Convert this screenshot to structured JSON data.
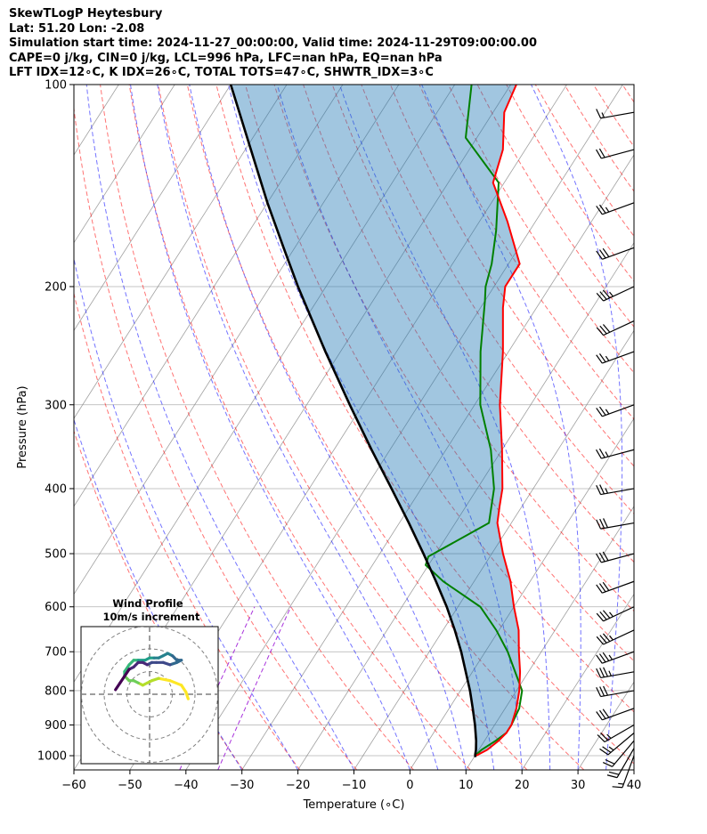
{
  "header": {
    "line1": "SkewTLogP Heytesbury",
    "line2": "Lat: 51.20   Lon: -2.08",
    "line3": "Simulation start time: 2024-11-27_00:00:00, Valid time: 2024-11-29T09:00:00.00",
    "line4": "CAPE=0 j/kg, CIN=0 j/kg, LCL=996 hPa, LFC=nan hPa, EQ=nan hPa",
    "line5": "LFT IDX=12∘C, K IDX=26∘C, TOTAL TOTS=47∘C, SHWTR_IDX=3∘C"
  },
  "chart_data": {
    "type": "line",
    "subtype": "skew-t log-p diagram",
    "xlabel": "Temperature (∘C)",
    "ylabel": "Pressure (hPa)",
    "xlim": [
      -60,
      40
    ],
    "ylim": [
      1050,
      100
    ],
    "y_scale": "log",
    "x_ticks": [
      -60,
      -50,
      -40,
      -30,
      -20,
      -10,
      0,
      10,
      20,
      30,
      40
    ],
    "x_tick_labels": [
      "−60",
      "−50",
      "−40",
      "−30",
      "−20",
      "−10",
      "0",
      "10",
      "20",
      "30",
      "40"
    ],
    "y_ticks": [
      1000,
      900,
      800,
      700,
      600,
      500,
      400,
      300,
      200,
      100
    ],
    "y_tick_labels": [
      "1000",
      "900",
      "800",
      "700",
      "600",
      "500",
      "400",
      "300",
      "200",
      "100"
    ],
    "grid": true,
    "colors": {
      "temperature": "#ff0000",
      "dewpoint": "#008000",
      "parcel": "#000000",
      "shading": "#1f77b4",
      "dry_adiabat": "#ff0000",
      "moist_adiabat": "#0000ff",
      "isotherm": "#808080",
      "mixing_ratio": "#9400d3"
    },
    "series": [
      {
        "role": "temperature",
        "pressure": [
          1000,
          980,
          950,
          925,
          900,
          850,
          800,
          750,
          700,
          650,
          600,
          550,
          500,
          450,
          425,
          400,
          350,
          300,
          250,
          215,
          200,
          185,
          160,
          140,
          125,
          110,
          100
        ],
        "values": [
          10.2,
          11.5,
          12.5,
          13.0,
          13.0,
          12.0,
          10.5,
          8.5,
          6.0,
          3.5,
          0.0,
          -3.5,
          -8.0,
          -12.5,
          -14.0,
          -15.5,
          -20.0,
          -25.5,
          -31.0,
          -36.0,
          -38.0,
          -38.0,
          -45.0,
          -52.0,
          -54.0,
          -58.0,
          -59.0
        ]
      },
      {
        "role": "dewpoint",
        "pressure": [
          1000,
          980,
          950,
          925,
          900,
          850,
          800,
          700,
          650,
          600,
          550,
          520,
          505,
          450,
          400,
          350,
          300,
          250,
          210,
          200,
          185,
          165,
          140,
          120,
          100
        ],
        "values": [
          10.0,
          10.5,
          12.0,
          13.0,
          13.0,
          12.5,
          11.0,
          4.0,
          -0.5,
          -6.0,
          -15.5,
          -20.5,
          -21.0,
          -14.0,
          -17.0,
          -22.0,
          -29.0,
          -35.0,
          -40.0,
          -41.5,
          -43.0,
          -46.0,
          -51.0,
          -62.0,
          -67.0
        ]
      },
      {
        "role": "parcel",
        "pressure": [
          1005,
          996,
          980,
          950,
          900,
          850,
          800,
          750,
          700,
          650,
          600,
          550,
          500,
          450,
          400,
          350,
          300,
          250,
          200,
          175,
          150,
          125,
          100
        ],
        "values": [
          10.2,
          9.9,
          9.5,
          8.5,
          6.5,
          4.2,
          1.7,
          -1.2,
          -4.3,
          -7.9,
          -12.0,
          -16.8,
          -22.2,
          -28.3,
          -35.3,
          -43.3,
          -52.3,
          -62.7,
          -75.0,
          -82.0,
          -90.0,
          -99.0,
          -110.0
        ]
      }
    ],
    "background_lines": {
      "dry_adiabats_theta_K": [
        240,
        250,
        260,
        270,
        280,
        290,
        300,
        310,
        320,
        330,
        340,
        350,
        360,
        370,
        380,
        390,
        400,
        410,
        420,
        430,
        440,
        450,
        460,
        470
      ],
      "moist_adiabats_start_temp_C": [
        -30,
        -20,
        -10,
        0,
        5,
        10,
        15,
        20,
        25,
        30,
        35
      ],
      "mixing_ratio_lines_gkg": [
        0.1,
        0.2
      ],
      "isotherms_step_C": 10
    },
    "wind_barbs": {
      "pressure": [
        1000,
        975,
        950,
        925,
        900,
        850,
        800,
        750,
        700,
        650,
        600,
        550,
        500,
        450,
        400,
        350,
        300,
        250,
        225,
        200,
        175,
        150,
        125,
        110
      ],
      "speed_kt": [
        15,
        20,
        20,
        25,
        25,
        30,
        30,
        35,
        35,
        35,
        35,
        30,
        30,
        30,
        25,
        25,
        25,
        25,
        30,
        35,
        30,
        25,
        20,
        15
      ],
      "direction_deg": [
        200,
        210,
        220,
        230,
        240,
        250,
        260,
        260,
        250,
        245,
        245,
        250,
        255,
        260,
        260,
        255,
        250,
        250,
        245,
        245,
        250,
        250,
        255,
        260
      ]
    },
    "hodograph": {
      "title": "Wind Profile",
      "subtitle": "10m/s increment",
      "rings_ms": [
        10,
        20,
        30
      ],
      "u_ms": [
        17,
        16,
        14,
        9,
        4,
        1,
        -1,
        -3,
        -5,
        -7,
        -9,
        -10,
        -11,
        -11,
        -9,
        -7,
        -5,
        -2,
        0,
        2,
        4,
        6,
        8,
        10,
        12,
        14,
        12,
        9,
        6,
        3,
        1,
        -1,
        -3,
        -5,
        -7,
        -9,
        -11,
        -13,
        -15
      ],
      "v_ms": [
        -2,
        1,
        4,
        6,
        7,
        6,
        5,
        4,
        5,
        6,
        6,
        7,
        8,
        10,
        13,
        15,
        15,
        15,
        16,
        16,
        16,
        17,
        18,
        17,
        15,
        15,
        14,
        13,
        14,
        14,
        14,
        13,
        14,
        14,
        12,
        11,
        8,
        5,
        2
      ]
    }
  }
}
